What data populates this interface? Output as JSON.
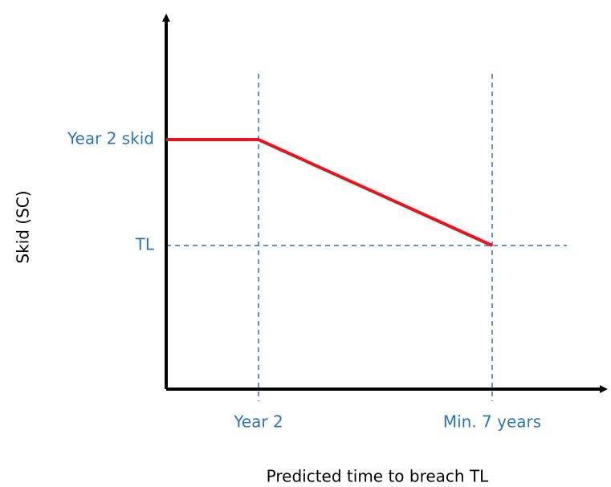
{
  "y_axis": {
    "title": "Skid (SC)",
    "labels": [
      "Year 2 skid",
      "TL"
    ]
  },
  "x_axis": {
    "title": "Predicted time to breach TL",
    "labels": [
      "Year 2",
      "Min. 7 years"
    ]
  }
}
